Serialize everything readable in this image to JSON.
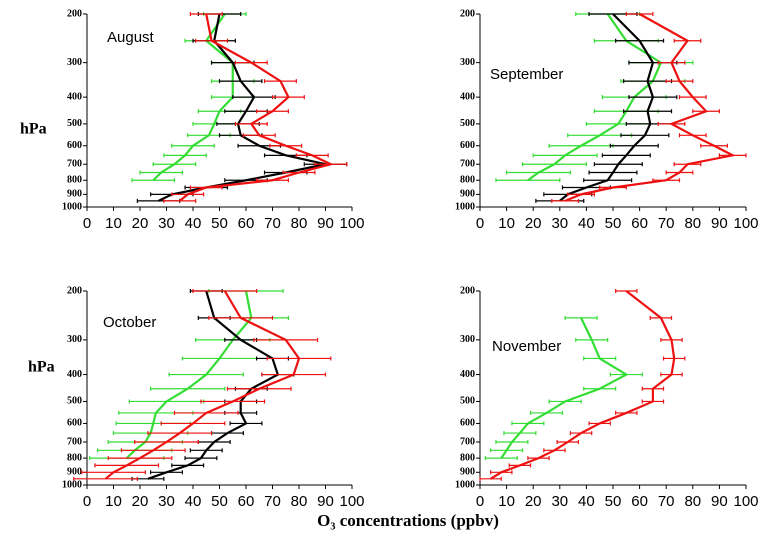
{
  "xlabel": "O₃ concentrations (ppbv)",
  "chart_data": [
    {
      "type": "profile",
      "title": "August",
      "ylabel": "hPa",
      "xlim": [
        0,
        100
      ],
      "xticks": [
        0,
        10,
        20,
        30,
        40,
        50,
        60,
        70,
        80,
        90,
        100
      ],
      "ylim": [
        200,
        1000
      ],
      "yticks": [
        200,
        300,
        400,
        500,
        600,
        700,
        800,
        900,
        1000
      ],
      "ylog": true,
      "yinvert": true,
      "y": [
        200,
        250,
        300,
        350,
        400,
        450,
        500,
        550,
        600,
        650,
        700,
        750,
        800,
        850,
        900,
        950
      ],
      "series": [
        {
          "color": "#33dd33",
          "error": 8,
          "values": [
            52,
            45,
            55,
            55,
            55,
            50,
            48,
            46,
            40,
            37,
            33,
            28,
            25,
            null,
            null,
            null
          ]
        },
        {
          "color": "#000000",
          "error": 8,
          "values": [
            50,
            48,
            55,
            58,
            63,
            60,
            57,
            58,
            65,
            75,
            90,
            75,
            60,
            45,
            32,
            27
          ]
        },
        {
          "color": "#ee1111",
          "error": 6,
          "values": [
            45,
            47,
            62,
            73,
            76,
            70,
            62,
            65,
            75,
            85,
            92,
            80,
            70,
            45,
            38,
            35
          ]
        }
      ]
    },
    {
      "type": "profile",
      "title": "September",
      "xlim": [
        0,
        100
      ],
      "xticks": [
        0,
        10,
        20,
        30,
        40,
        50,
        60,
        70,
        80,
        90,
        100
      ],
      "ylim": [
        200,
        1000
      ],
      "yticks": [
        200,
        300,
        400,
        500,
        600,
        700,
        800,
        900,
        1000
      ],
      "ylog": true,
      "yinvert": true,
      "y": [
        200,
        250,
        300,
        350,
        400,
        450,
        500,
        550,
        600,
        650,
        700,
        750,
        800,
        850,
        900,
        950
      ],
      "series": [
        {
          "color": "#33dd33",
          "error": 12,
          "values": [
            48,
            55,
            68,
            65,
            58,
            55,
            52,
            45,
            38,
            32,
            28,
            22,
            18,
            null,
            null,
            null
          ]
        },
        {
          "color": "#000000",
          "error": 9,
          "values": [
            50,
            60,
            65,
            63,
            65,
            63,
            64,
            62,
            58,
            55,
            52,
            50,
            48,
            40,
            33,
            30
          ]
        },
        {
          "color": "#ee1111",
          "error": 5,
          "values": [
            60,
            78,
            72,
            75,
            80,
            85,
            72,
            80,
            88,
            95,
            78,
            75,
            70,
            50,
            38,
            32
          ]
        }
      ]
    },
    {
      "type": "profile",
      "title": "October",
      "ylabel": "hPa",
      "xlim": [
        0,
        100
      ],
      "xticks": [
        0,
        10,
        20,
        30,
        40,
        50,
        60,
        70,
        80,
        90,
        100
      ],
      "ylim": [
        200,
        1000
      ],
      "yticks": [
        200,
        300,
        400,
        500,
        600,
        700,
        800,
        900,
        1000
      ],
      "ylog": true,
      "yinvert": true,
      "y": [
        200,
        250,
        300,
        350,
        400,
        450,
        500,
        550,
        600,
        650,
        700,
        750,
        800,
        850,
        900,
        950
      ],
      "series": [
        {
          "color": "#33dd33",
          "error": 14,
          "values": [
            60,
            62,
            55,
            50,
            45,
            38,
            30,
            26,
            25,
            24,
            22,
            18,
            15,
            null,
            null,
            null
          ]
        },
        {
          "color": "#000000",
          "error": 6,
          "values": [
            45,
            48,
            58,
            70,
            72,
            62,
            58,
            58,
            60,
            53,
            48,
            45,
            43,
            38,
            30,
            23
          ]
        },
        {
          "color": "#ee1111",
          "error": 12,
          "values": [
            52,
            58,
            75,
            80,
            78,
            65,
            55,
            45,
            40,
            35,
            30,
            25,
            20,
            15,
            10,
            7
          ]
        }
      ]
    },
    {
      "type": "profile",
      "title": "November",
      "xlim": [
        0,
        100
      ],
      "xticks": [
        0,
        10,
        20,
        30,
        40,
        50,
        60,
        70,
        80,
        90,
        100
      ],
      "ylim": [
        200,
        1000
      ],
      "yticks": [
        200,
        300,
        400,
        500,
        600,
        700,
        800,
        900,
        1000
      ],
      "ylog": true,
      "yinvert": true,
      "y": [
        200,
        250,
        300,
        350,
        400,
        450,
        500,
        550,
        600,
        650,
        700,
        750,
        800,
        850,
        900,
        950
      ],
      "series": [
        {
          "color": "#33dd33",
          "error": 6,
          "values": [
            null,
            38,
            42,
            45,
            55,
            45,
            32,
            25,
            18,
            15,
            12,
            10,
            8,
            null,
            null,
            null
          ]
        },
        {
          "color": "#ee1111",
          "error": 4,
          "values": [
            55,
            68,
            72,
            73,
            72,
            65,
            65,
            55,
            45,
            38,
            33,
            28,
            22,
            15,
            8,
            4
          ]
        }
      ]
    }
  ]
}
